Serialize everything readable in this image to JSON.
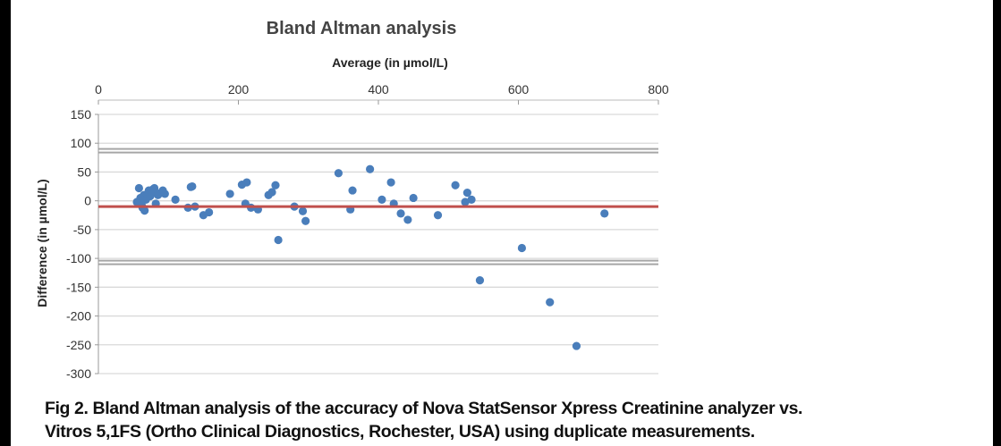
{
  "chart_data": {
    "type": "scatter",
    "title": "Bland Altman analysis",
    "xlabel": "Average (in µmol/L)",
    "ylabel": "Difference (in µmol/L)",
    "xlim": [
      0,
      800
    ],
    "ylim": [
      -300,
      150
    ],
    "x_ticks": [
      "0",
      "200",
      "400",
      "600",
      "800"
    ],
    "y_ticks": [
      "150",
      "100",
      "50",
      "0",
      "-50",
      "-100",
      "-150",
      "-200",
      "-250",
      "-300"
    ],
    "x_axis_position": "top",
    "grid": "horizontal",
    "colors": {
      "points": "#4a7ebb",
      "mean_line": "#c0504d",
      "limit_lines": "#a6a6a6",
      "grid": "#d9d9d9"
    },
    "mean_difference": -10,
    "limits_of_agreement": [
      87,
      -107
    ],
    "series": [
      {
        "points": [
          [
            55,
            -2
          ],
          [
            58,
            22
          ],
          [
            60,
            5
          ],
          [
            62,
            -8
          ],
          [
            63,
            -12
          ],
          [
            65,
            10
          ],
          [
            66,
            -17
          ],
          [
            68,
            2
          ],
          [
            70,
            12
          ],
          [
            72,
            18
          ],
          [
            74,
            8
          ],
          [
            76,
            15
          ],
          [
            78,
            20
          ],
          [
            80,
            22
          ],
          [
            82,
            -5
          ],
          [
            85,
            10
          ],
          [
            88,
            13
          ],
          [
            92,
            18
          ],
          [
            95,
            12
          ],
          [
            110,
            2
          ],
          [
            128,
            -12
          ],
          [
            132,
            24
          ],
          [
            134,
            25
          ],
          [
            138,
            -10
          ],
          [
            150,
            -25
          ],
          [
            158,
            -20
          ],
          [
            188,
            12
          ],
          [
            205,
            28
          ],
          [
            210,
            -5
          ],
          [
            212,
            32
          ],
          [
            218,
            -12
          ],
          [
            228,
            -15
          ],
          [
            243,
            10
          ],
          [
            248,
            15
          ],
          [
            253,
            27
          ],
          [
            257,
            -68
          ],
          [
            280,
            -10
          ],
          [
            292,
            -18
          ],
          [
            296,
            -35
          ],
          [
            343,
            48
          ],
          [
            360,
            -15
          ],
          [
            363,
            18
          ],
          [
            388,
            55
          ],
          [
            405,
            2
          ],
          [
            418,
            32
          ],
          [
            422,
            -5
          ],
          [
            432,
            -22
          ],
          [
            442,
            -33
          ],
          [
            450,
            5
          ],
          [
            485,
            -25
          ],
          [
            510,
            27
          ],
          [
            524,
            -2
          ],
          [
            527,
            14
          ],
          [
            533,
            2
          ],
          [
            545,
            -138
          ],
          [
            605,
            -82
          ],
          [
            645,
            -176
          ],
          [
            683,
            -252
          ],
          [
            723,
            -22
          ]
        ]
      }
    ]
  },
  "caption": {
    "line1": "Fig 2. Bland Altman analysis of the accuracy of Nova StatSensor Xpress Creatinine analyzer vs.",
    "line2": "Vitros 5,1FS (Ortho Clinical Diagnostics, Rochester, USA) using duplicate measurements."
  }
}
